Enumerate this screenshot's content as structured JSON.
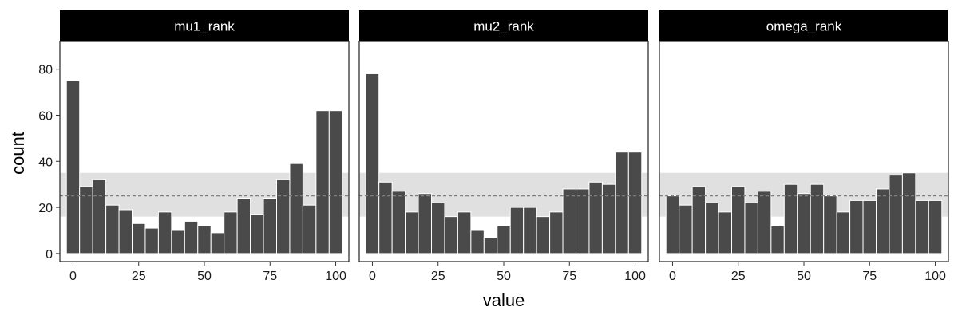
{
  "chart_data": {
    "type": "bar",
    "xlabel": "value",
    "ylabel": "count",
    "xlim": [
      -5,
      105
    ],
    "ylim": [
      -3.5,
      92
    ],
    "x_ticks": [
      0,
      25,
      50,
      75,
      100
    ],
    "y_ticks": [
      0,
      20,
      40,
      60,
      80
    ],
    "bin_width": 5,
    "bin_centers": [
      0,
      5,
      10,
      15,
      20,
      25,
      30,
      35,
      40,
      45,
      50,
      55,
      60,
      65,
      70,
      75,
      80,
      85,
      90,
      95,
      100
    ],
    "reference_band": {
      "lower": 16,
      "upper": 35,
      "expected": 25
    },
    "grid": false,
    "colors": {
      "bar_fill": "#4a4a4a",
      "bar_outline": "#ffffff",
      "band_fill": "#e0e0e0",
      "reference_line": "#7f7f7f",
      "strip_background": "#000000",
      "strip_text": "#ffffff",
      "panel_border": "#333333"
    },
    "panels": [
      {
        "name": "mu1_rank",
        "values": [
          75,
          29,
          32,
          21,
          19,
          13,
          11,
          18,
          10,
          14,
          12,
          9,
          18,
          24,
          17,
          24,
          32,
          39,
          21,
          62,
          62
        ]
      },
      {
        "name": "mu2_rank",
        "values": [
          78,
          31,
          27,
          18,
          26,
          22,
          16,
          18,
          10,
          7,
          12,
          20,
          20,
          16,
          18,
          28,
          28,
          31,
          30,
          44,
          44
        ]
      },
      {
        "name": "omega_rank",
        "values": [
          25,
          21,
          29,
          22,
          18,
          29,
          22,
          27,
          12,
          30,
          26,
          30,
          25,
          18,
          23,
          23,
          28,
          34,
          35,
          23,
          23
        ]
      }
    ]
  }
}
